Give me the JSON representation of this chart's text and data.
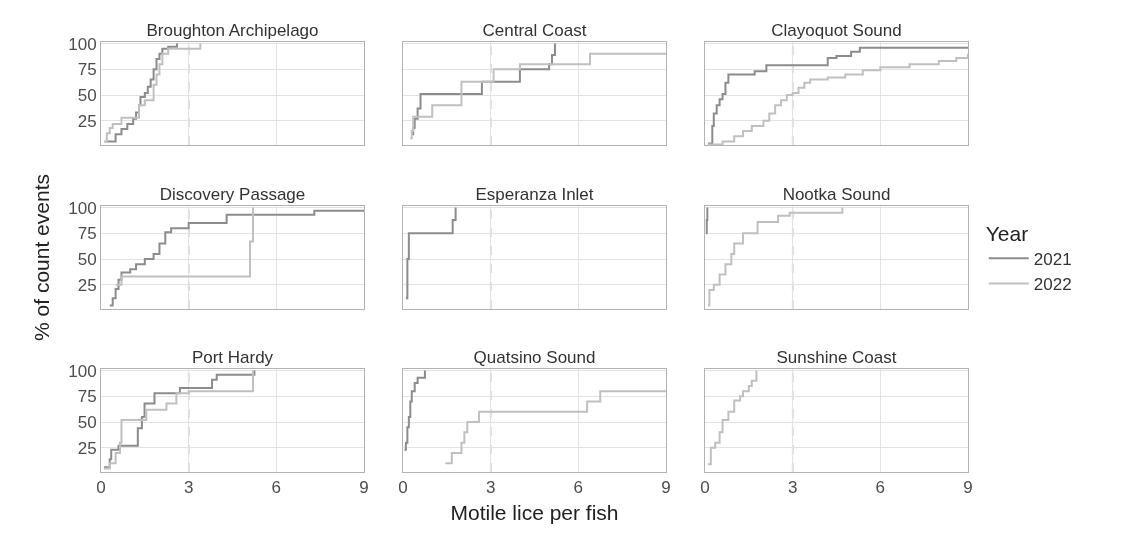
{
  "chart_data": [
    {
      "type": "step",
      "title": "Broughton Archipelago",
      "xlim": [
        0,
        9
      ],
      "xticks": [
        0,
        3,
        6,
        9
      ],
      "ylim": [
        1.5,
        101.5
      ],
      "yticks": [
        25,
        50,
        75,
        100
      ],
      "grid": true,
      "tick_labels": "y",
      "legend": false,
      "ref_lines": [
        {
          "axis": "x",
          "value": 3,
          "color": "#b3b3b3",
          "line_style": "dashed"
        }
      ],
      "series": [
        {
          "color": "#8c8c8c",
          "x": [
            0.15,
            0.5,
            0.7,
            0.9,
            1.1,
            1.2,
            1.3,
            1.35,
            1.5,
            1.6,
            1.7,
            1.8,
            1.9,
            2.0,
            2.1,
            2.3,
            2.6
          ],
          "values": [
            5,
            12,
            17,
            22,
            27,
            33,
            40,
            48,
            52,
            58,
            65,
            75,
            85,
            90,
            95,
            97,
            100
          ]
        },
        {
          "color": "#c0c0c0",
          "x": [
            0.1,
            0.2,
            0.3,
            0.4,
            0.7,
            1.3,
            1.5,
            1.8,
            1.9,
            2.0,
            2.1,
            2.3,
            3.4
          ],
          "values": [
            5,
            13,
            18,
            22,
            28,
            40,
            45,
            60,
            70,
            80,
            90,
            95,
            100
          ]
        }
      ]
    },
    {
      "type": "step",
      "title": "Central Coast",
      "xlim": [
        0,
        9
      ],
      "xticks": [
        0,
        3,
        6,
        9
      ],
      "ylim": [
        1.5,
        101.5
      ],
      "yticks": [
        25,
        50,
        75,
        100
      ],
      "grid": true,
      "tick_labels": false,
      "legend": false,
      "ref_lines": [
        {
          "axis": "x",
          "value": 3,
          "color": "#b3b3b3",
          "line_style": "dashed"
        }
      ],
      "series": [
        {
          "color": "#8c8c8c",
          "x": [
            0.3,
            0.35,
            0.4,
            0.5,
            0.6,
            2.7,
            4.0,
            5.0,
            5.1,
            5.2
          ],
          "values": [
            12,
            18,
            27,
            37,
            51,
            63,
            75,
            80,
            89,
            100
          ]
        },
        {
          "color": "#c0c0c0",
          "x": [
            0.25,
            0.3,
            0.35,
            1.0,
            2.0,
            3.1,
            4.0,
            6.4,
            9.0
          ],
          "values": [
            8,
            15,
            29,
            40,
            63,
            75,
            80,
            90,
            90
          ]
        }
      ]
    },
    {
      "type": "step",
      "title": "Clayoquot Sound",
      "xlim": [
        0,
        9
      ],
      "xticks": [
        0,
        3,
        6,
        9
      ],
      "ylim": [
        1.5,
        101.5
      ],
      "yticks": [
        25,
        50,
        75,
        100
      ],
      "grid": true,
      "tick_labels": false,
      "legend": false,
      "ref_lines": [
        {
          "axis": "x",
          "value": 3,
          "color": "#b3b3b3",
          "line_style": "dashed"
        }
      ],
      "series": [
        {
          "color": "#8c8c8c",
          "x": [
            0.1,
            0.25,
            0.3,
            0.4,
            0.5,
            0.6,
            0.7,
            0.8,
            1.7,
            2.1,
            4.2,
            4.5,
            5.0,
            5.3,
            9.0
          ],
          "values": [
            3,
            20,
            32,
            40,
            46,
            51,
            62,
            70,
            73,
            79,
            86,
            88,
            92,
            96,
            96
          ]
        },
        {
          "color": "#c0c0c0",
          "x": [
            0.1,
            0.6,
            1.0,
            1.3,
            1.6,
            2.0,
            2.2,
            2.4,
            2.6,
            2.8,
            3.0,
            3.2,
            3.4,
            3.6,
            4.2,
            4.8,
            5.4,
            6.0,
            7.0,
            8.0,
            8.6,
            9.0
          ],
          "values": [
            2,
            5,
            10,
            15,
            20,
            25,
            32,
            40,
            45,
            50,
            52,
            57,
            62,
            65,
            67,
            70,
            74,
            77,
            80,
            83,
            86,
            90
          ]
        }
      ]
    },
    {
      "type": "step",
      "title": "Discovery Passage",
      "ylabel": "% of count events",
      "xlim": [
        0,
        9
      ],
      "xticks": [
        0,
        3,
        6,
        9
      ],
      "ylim": [
        1.5,
        101.5
      ],
      "yticks": [
        25,
        50,
        75,
        100
      ],
      "grid": true,
      "tick_labels": "y",
      "legend": false,
      "ref_lines": [
        {
          "axis": "x",
          "value": 3,
          "color": "#b3b3b3",
          "line_style": "dashed"
        }
      ],
      "series": [
        {
          "color": "#8c8c8c",
          "x": [
            0.3,
            0.4,
            0.5,
            0.6,
            0.7,
            1.0,
            1.2,
            1.5,
            1.8,
            2.0,
            2.2,
            2.4,
            3.0,
            4.3,
            7.3,
            9.0
          ],
          "values": [
            5,
            12,
            21,
            30,
            37,
            40,
            45,
            50,
            55,
            65,
            76,
            80,
            85,
            93,
            97,
            97
          ]
        },
        {
          "color": "#c0c0c0",
          "x": [
            0.5,
            0.7,
            5.1,
            5.2
          ],
          "values": [
            25,
            33,
            67,
            100
          ]
        }
      ]
    },
    {
      "type": "step",
      "title": "Esperanza Inlet",
      "xlim": [
        0,
        9
      ],
      "xticks": [
        0,
        3,
        6,
        9
      ],
      "ylim": [
        1.5,
        101.5
      ],
      "yticks": [
        25,
        50,
        75,
        100
      ],
      "grid": true,
      "tick_labels": false,
      "legend": false,
      "ref_lines": [
        {
          "axis": "x",
          "value": 3,
          "color": "#b3b3b3",
          "line_style": "dashed"
        }
      ],
      "series": [
        {
          "color": "#8c8c8c",
          "x": [
            0.1,
            0.15,
            0.2,
            1.7,
            1.8
          ],
          "values": [
            12,
            50,
            75,
            88,
            100
          ]
        }
      ]
    },
    {
      "type": "step",
      "title": "Nootka Sound",
      "legend_title": "Year",
      "xlim": [
        0,
        9
      ],
      "xticks": [
        0,
        3,
        6,
        9
      ],
      "ylim": [
        1.5,
        101.5
      ],
      "yticks": [
        25,
        50,
        75,
        100
      ],
      "grid": true,
      "tick_labels": false,
      "legend": "right",
      "ref_lines": [
        {
          "axis": "x",
          "value": 3,
          "color": "#b3b3b3",
          "line_style": "dashed"
        }
      ],
      "series": [
        {
          "name": "2021",
          "color": "#8c8c8c",
          "x": [
            0.03,
            0.06,
            0.08
          ],
          "values": [
            75,
            88,
            100
          ]
        },
        {
          "name": "2022",
          "color": "#c0c0c0",
          "x": [
            0.1,
            0.15,
            0.3,
            0.5,
            0.7,
            0.9,
            1.0,
            1.3,
            1.8,
            2.5,
            2.9,
            4.7
          ],
          "values": [
            5,
            20,
            25,
            35,
            45,
            55,
            65,
            75,
            86,
            92,
            95,
            100
          ]
        }
      ]
    },
    {
      "type": "step",
      "title": "Port Hardy",
      "xlim": [
        0,
        9
      ],
      "xticks": [
        0,
        3,
        6,
        9
      ],
      "ylim": [
        1.5,
        101.5
      ],
      "yticks": [
        25,
        50,
        75,
        100
      ],
      "grid": true,
      "legend": false,
      "ref_lines": [
        {
          "axis": "x",
          "value": 3,
          "color": "#b3b3b3",
          "line_style": "dashed"
        }
      ],
      "series": [
        {
          "color": "#8c8c8c",
          "x": [
            0.1,
            0.3,
            0.35,
            0.6,
            1.26,
            1.4,
            1.49,
            1.83,
            2.7,
            3.8,
            3.96,
            5.25
          ],
          "values": [
            6,
            14,
            23,
            27,
            44,
            55,
            68,
            78,
            83,
            91,
            96,
            100
          ]
        },
        {
          "color": "#c0c0c0",
          "x": [
            0.1,
            0.3,
            0.5,
            0.65,
            0.7,
            1.55,
            2.24,
            2.58,
            3.0,
            5.2
          ],
          "values": [
            5,
            10,
            20,
            30,
            52,
            62,
            68,
            78,
            80,
            100
          ]
        }
      ]
    },
    {
      "type": "step",
      "title": "Quatsino Sound",
      "xlabel": "Motile lice per fish",
      "xlim": [
        0,
        9
      ],
      "xticks": [
        0,
        3,
        6,
        9
      ],
      "ylim": [
        1.5,
        101.5
      ],
      "yticks": [
        25,
        50,
        75,
        100
      ],
      "grid": true,
      "tick_labels": "x",
      "legend": false,
      "ref_lines": [
        {
          "axis": "x",
          "value": 3,
          "color": "#b3b3b3",
          "line_style": "dashed"
        }
      ],
      "series": [
        {
          "color": "#8c8c8c",
          "x": [
            0.05,
            0.1,
            0.15,
            0.2,
            0.25,
            0.3,
            0.4,
            0.5,
            0.75
          ],
          "values": [
            23,
            30,
            45,
            55,
            70,
            80,
            88,
            93,
            100
          ]
        },
        {
          "color": "#c0c0c0",
          "x": [
            1.45,
            1.67,
            2.0,
            2.1,
            2.2,
            2.6,
            6.3,
            6.75,
            9.0
          ],
          "values": [
            10,
            20,
            30,
            40,
            50,
            60,
            70,
            80,
            80
          ]
        }
      ]
    },
    {
      "type": "step",
      "title": "Sunshine Coast",
      "xlim": [
        0,
        9
      ],
      "xticks": [
        0,
        3,
        6,
        9
      ],
      "ylim": [
        1.5,
        101.5
      ],
      "yticks": [
        25,
        50,
        75,
        100
      ],
      "grid": true,
      "tick_labels": "x",
      "legend": false,
      "ref_lines": [
        {
          "axis": "x",
          "value": 3,
          "color": "#b3b3b3",
          "line_style": "dashed"
        }
      ],
      "series": [
        {
          "color": "#c0c0c0",
          "x": [
            0.1,
            0.2,
            0.35,
            0.5,
            0.6,
            0.8,
            1.0,
            1.2,
            1.3,
            1.5,
            1.6,
            1.76
          ],
          "values": [
            9,
            25,
            30,
            40,
            52,
            60,
            71,
            75,
            80,
            85,
            90,
            100
          ]
        }
      ]
    }
  ]
}
